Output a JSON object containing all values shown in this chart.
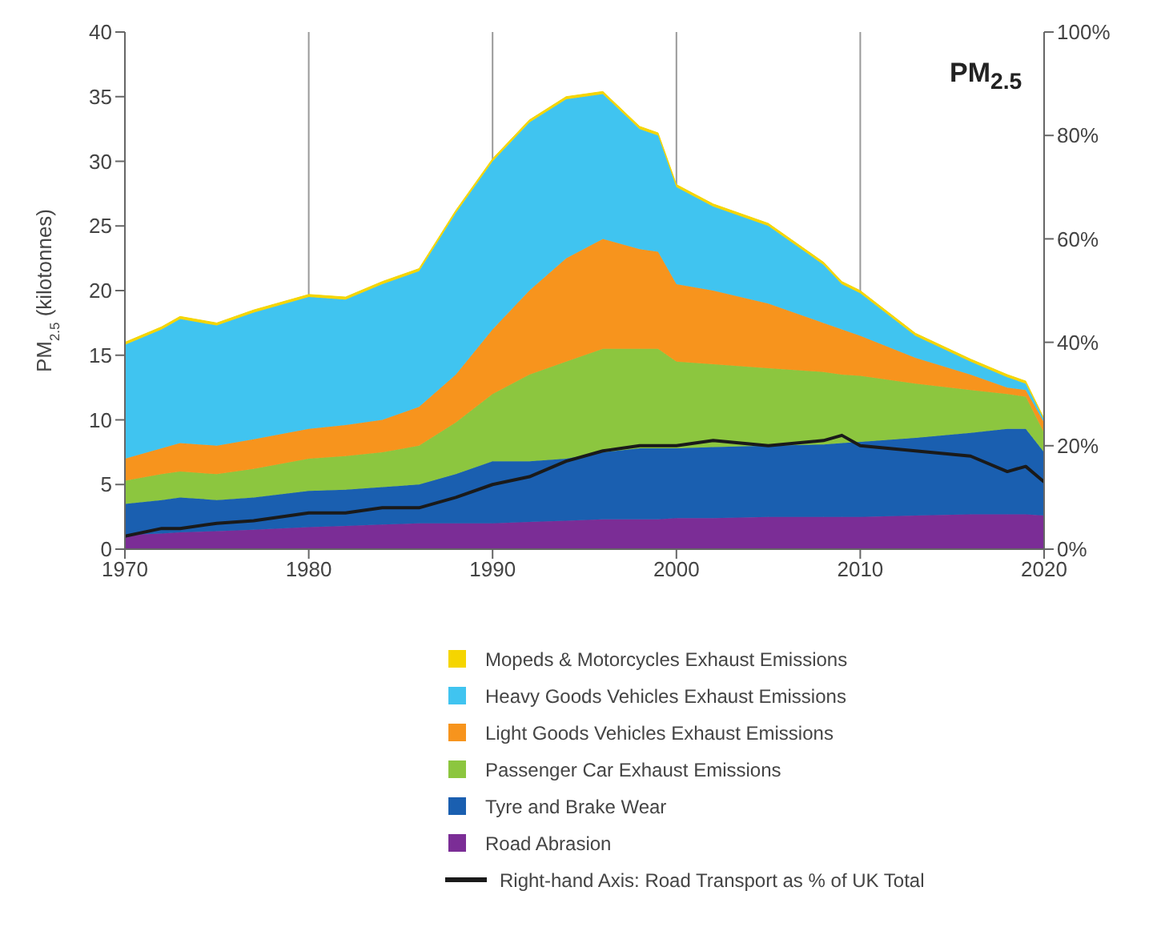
{
  "chart_data": {
    "type": "area",
    "stacked": true,
    "title": "PM$_{2.5}$",
    "ylabel": "PM$_{2.5}$ (kilotonnes)",
    "x": [
      1970,
      1972,
      1973,
      1975,
      1977,
      1980,
      1982,
      1984,
      1986,
      1988,
      1990,
      1992,
      1994,
      1996,
      1998,
      1999,
      2000,
      2002,
      2005,
      2008,
      2009,
      2010,
      2013,
      2016,
      2018,
      2019,
      2020
    ],
    "series": [
      {
        "name": "Road Abrasion",
        "color": "#7b2d96",
        "values": [
          1.1,
          1.2,
          1.3,
          1.4,
          1.5,
          1.7,
          1.8,
          1.9,
          2.0,
          2.0,
          2.0,
          2.1,
          2.2,
          2.3,
          2.3,
          2.3,
          2.4,
          2.4,
          2.5,
          2.5,
          2.5,
          2.5,
          2.6,
          2.7,
          2.7,
          2.7,
          2.6
        ]
      },
      {
        "name": "Tyre and Brake Wear",
        "color": "#1a5fb0",
        "values": [
          2.4,
          2.6,
          2.7,
          2.4,
          2.5,
          2.8,
          2.8,
          2.9,
          3.0,
          3.8,
          4.8,
          4.7,
          4.8,
          5.2,
          5.5,
          5.5,
          5.4,
          5.5,
          5.5,
          5.6,
          5.7,
          5.8,
          6.0,
          6.3,
          6.6,
          6.6,
          4.9
        ]
      },
      {
        "name": "Passenger Car Exhaust Emissions",
        "color": "#8cc63f",
        "values": [
          1.8,
          2.0,
          2.0,
          2.0,
          2.2,
          2.5,
          2.6,
          2.7,
          3.0,
          4.0,
          5.2,
          6.7,
          7.5,
          8.0,
          7.7,
          7.7,
          6.7,
          6.4,
          6.0,
          5.6,
          5.3,
          5.1,
          4.2,
          3.3,
          2.7,
          2.5,
          1.5
        ]
      },
      {
        "name": "Light Goods Vehicles Exhaust Emissions",
        "color": "#f7941d",
        "values": [
          1.7,
          2.0,
          2.2,
          2.2,
          2.3,
          2.3,
          2.4,
          2.5,
          3.0,
          3.7,
          5.0,
          6.5,
          8.0,
          8.5,
          7.7,
          7.5,
          6.0,
          5.7,
          5.0,
          3.8,
          3.5,
          3.1,
          2.0,
          1.2,
          0.5,
          0.5,
          0.8
        ]
      },
      {
        "name": "Heavy Goods Vehicles Exhaust Emissions",
        "color": "#40c4f0",
        "values": [
          8.8,
          9.2,
          9.6,
          9.3,
          9.8,
          10.2,
          9.7,
          10.5,
          10.5,
          12.5,
          13.0,
          13.0,
          12.3,
          11.2,
          9.3,
          9.0,
          7.5,
          6.5,
          6.0,
          4.5,
          3.5,
          3.3,
          1.7,
          1.0,
          0.8,
          0.5,
          0.2
        ]
      },
      {
        "name": "Mopeds & Motorcycles Exhaust Emissions",
        "color": "#f5d500",
        "values": [
          0.2,
          0.2,
          0.2,
          0.2,
          0.2,
          0.2,
          0.2,
          0.2,
          0.2,
          0.2,
          0.2,
          0.2,
          0.2,
          0.2,
          0.2,
          0.2,
          0.2,
          0.2,
          0.2,
          0.2,
          0.2,
          0.2,
          0.2,
          0.2,
          0.2,
          0.2,
          0.1
        ]
      },
      {
        "name": "Right-hand Axis: Road Transport as % of UK Total",
        "type": "line",
        "axis": "y2",
        "color": "#1a1a1a",
        "values": [
          2.5,
          4,
          4,
          5,
          5.5,
          7,
          7,
          8,
          8,
          10,
          12.5,
          14,
          17,
          19,
          20,
          20,
          20,
          21,
          20,
          21,
          22,
          20,
          19,
          18,
          15,
          16,
          13
        ]
      }
    ],
    "xlim": [
      1970,
      2020
    ],
    "xticks": [
      1970,
      1980,
      1990,
      2000,
      2010,
      2020
    ],
    "ylim": [
      0,
      40
    ],
    "yticks": [
      0,
      5,
      10,
      15,
      20,
      25,
      30,
      35,
      40
    ],
    "y2lim": [
      0,
      100
    ],
    "y2ticks": [
      {
        "value": 0,
        "label": "0%"
      },
      {
        "value": 20,
        "label": "20%"
      },
      {
        "value": 40,
        "label": "40%"
      },
      {
        "value": 60,
        "label": "60%"
      },
      {
        "value": 80,
        "label": "80%"
      },
      {
        "value": 100,
        "label": "100%"
      }
    ],
    "grid": "x",
    "legend": "bottom",
    "marker": "none"
  }
}
